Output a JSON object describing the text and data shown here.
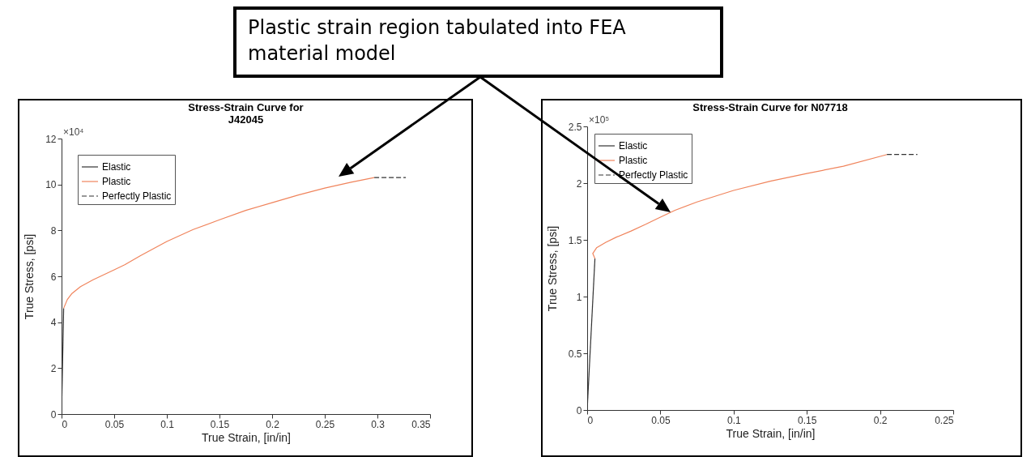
{
  "chart_data": [
    {
      "type": "other",
      "annotations": [
        "Plastic strain region tabulated into FEA material model"
      ]
    },
    {
      "type": "line",
      "title": "Stress-Strain Curve for\nJ42045",
      "xlabel": "True Strain, [in/in]",
      "ylabel": "True Stress, [psi]",
      "annotations": [
        "×10⁴"
      ],
      "legend": "top left",
      "grid": false,
      "xlim": [
        0,
        0.35
      ],
      "xticks": [
        0,
        0.05,
        0.1,
        0.15,
        0.2,
        0.25,
        0.3,
        0.35
      ],
      "ylim": [
        0,
        12
      ],
      "yticks": [
        0,
        2,
        4,
        6,
        8,
        10,
        12
      ],
      "series": [
        {
          "name": "Elastic",
          "color": "#333333",
          "line_style": "solid",
          "x": [
            0,
            0.002
          ],
          "values": [
            0,
            4.61
          ]
        },
        {
          "name": "Plastic",
          "color": "#f0845c",
          "line_style": "solid",
          "x": [
            0.002,
            0.0055,
            0.0096,
            0.018,
            0.03,
            0.05,
            0.06,
            0.075,
            0.1,
            0.125,
            0.15,
            0.175,
            0.2,
            0.225,
            0.25,
            0.275,
            0.297
          ],
          "values": [
            4.61,
            4.99,
            5.24,
            5.55,
            5.85,
            6.28,
            6.5,
            6.9,
            7.52,
            8.04,
            8.46,
            8.87,
            9.21,
            9.54,
            9.84,
            10.1,
            10.3
          ]
        },
        {
          "name": "Perfectly Plastic",
          "color": "#333333",
          "line_style": "dashed",
          "x": [
            0.297,
            0.327
          ],
          "values": [
            10.3,
            10.3
          ]
        }
      ]
    },
    {
      "type": "line",
      "title": "Stress-Strain Curve for N07718",
      "xlabel": "True Strain, [in/in]",
      "ylabel": "True Stress, [psi]",
      "annotations": [
        "×10⁵"
      ],
      "legend": "top left",
      "grid": false,
      "xlim": [
        0,
        0.25
      ],
      "xticks": [
        0,
        0.05,
        0.1,
        0.15,
        0.2,
        0.25
      ],
      "ylim": [
        0,
        2.5
      ],
      "yticks": [
        0,
        0.5,
        1,
        1.5,
        2,
        2.5
      ],
      "series": [
        {
          "name": "Elastic",
          "color": "#333333",
          "line_style": "solid",
          "x": [
            0,
            0.0053
          ],
          "values": [
            0,
            1.335
          ]
        },
        {
          "name": "Plastic",
          "color": "#f0845c",
          "line_style": "solid",
          "x": [
            0.0053,
            0.0038,
            0.0064,
            0.0128,
            0.02,
            0.03,
            0.04,
            0.05,
            0.06,
            0.075,
            0.1,
            0.125,
            0.15,
            0.175,
            0.2047
          ],
          "values": [
            1.335,
            1.38,
            1.43,
            1.478,
            1.524,
            1.578,
            1.637,
            1.7,
            1.761,
            1.834,
            1.936,
            2.017,
            2.085,
            2.149,
            2.252
          ]
        },
        {
          "name": "Perfectly Plastic",
          "color": "#333333",
          "line_style": "dashed",
          "x": [
            0.2047,
            0.2255
          ],
          "values": [
            2.252,
            2.252
          ]
        }
      ]
    }
  ]
}
